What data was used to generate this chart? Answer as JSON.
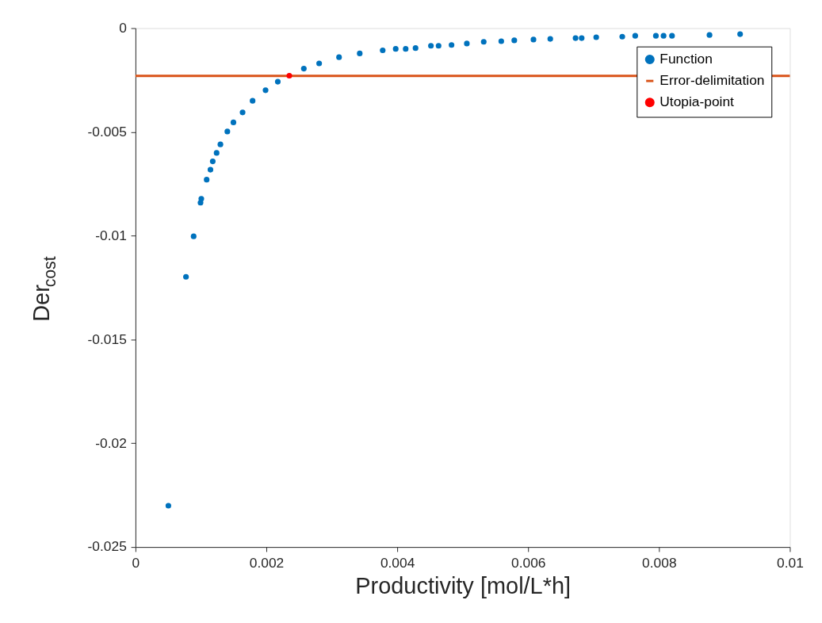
{
  "chart_data": {
    "type": "scatter",
    "xlabel": "Productivity [mol/L*h]",
    "ylabel": "Der$_{cost}$",
    "xlim": [
      0,
      0.01
    ],
    "xticks": [
      0,
      0.002,
      0.004,
      0.006,
      0.008,
      0.01
    ],
    "ylim": [
      -0.025,
      0
    ],
    "yticks": [
      -0.025,
      -0.02,
      -0.015,
      -0.01,
      -0.005,
      0
    ],
    "grid": false,
    "legend": "top right",
    "marker": "circle",
    "series": [
      {
        "name": "Function",
        "color": "#0072bd",
        "x": [
          0.000503,
          0.000772,
          0.000889,
          0.000994,
          0.001006,
          0.001088,
          0.001146,
          0.001181,
          0.00124,
          0.001298,
          0.001404,
          0.001497,
          0.001637,
          0.00179,
          0.001988,
          0.002175,
          0.002573,
          0.002807,
          0.003111,
          0.003427,
          0.003778,
          0.003977,
          0.004129,
          0.00428,
          0.004515,
          0.004632,
          0.00483,
          0.005064,
          0.005322,
          0.00559,
          0.005789,
          0.006082,
          0.006339,
          0.006725,
          0.006819,
          0.007041,
          0.007439,
          0.007637,
          0.007953,
          0.00807,
          0.008199,
          0.008772,
          0.00924
        ],
        "values": [
          -0.02301,
          -0.01198,
          -0.01003,
          -0.00841,
          -0.00822,
          -0.0073,
          -0.00682,
          -0.00642,
          -0.00601,
          -0.0056,
          -0.00498,
          -0.00454,
          -0.00406,
          -0.0035,
          -0.00299,
          -0.00258,
          -0.00195,
          -0.0017,
          -0.0014,
          -0.00122,
          -0.00107,
          -0.001,
          -0.001,
          -0.00096,
          -0.00085,
          -0.00085,
          -0.00081,
          -0.00074,
          -0.00066,
          -0.00063,
          -0.00059,
          -0.00055,
          -0.00052,
          -0.00048,
          -0.00048,
          -0.00044,
          -0.00041,
          -0.00037,
          -0.00037,
          -0.00037,
          -0.00037,
          -0.00033,
          -0.00029
        ]
      },
      {
        "name": "Utopia-point",
        "color": "#ff0000",
        "x": [
          0.002351
        ],
        "values": [
          -0.00229
        ]
      }
    ],
    "ref_lines": [
      {
        "axis": "y",
        "value": -0.0023,
        "label": "Error-delimitation",
        "color": "#d95319",
        "line_style": "solid"
      }
    ]
  }
}
